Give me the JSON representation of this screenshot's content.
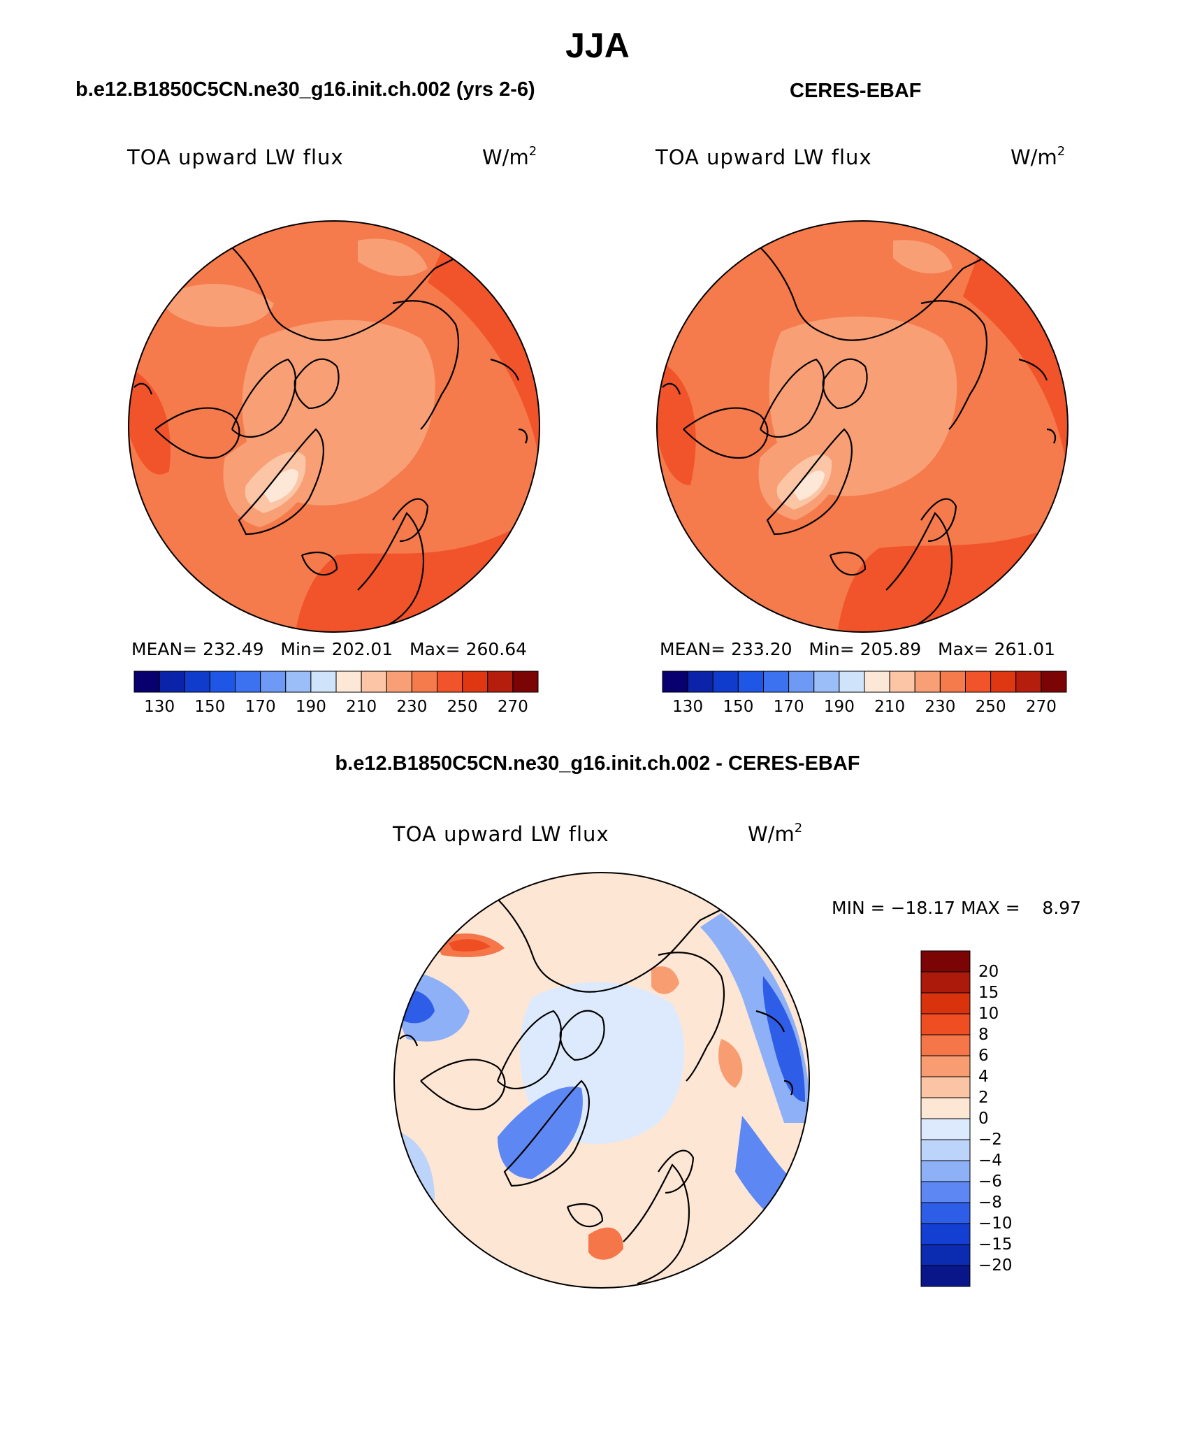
{
  "title": "JJA",
  "colors": {
    "full_palette": [
      "#08006e",
      "#0a23a8",
      "#0f3ccc",
      "#1e56e6",
      "#3c72f0",
      "#6e99f5",
      "#9bbef8",
      "#cfe3fb",
      "#fde8d8",
      "#fbc5a6",
      "#f89f75",
      "#f57a4c",
      "#f1542a",
      "#df3712",
      "#b51e0d",
      "#7b0404"
    ],
    "diff_palette": [
      "#08168a",
      "#0b2bb0",
      "#133fd2",
      "#2e5ee8",
      "#5d87f2",
      "#8eb0f6",
      "#bcd3fa",
      "#ddeafd",
      "#fde6d4",
      "#fbc4a4",
      "#f89d72",
      "#f57648",
      "#ef4e23",
      "#d9330e",
      "#ac1a0b",
      "#7b0505"
    ],
    "coast": "#000000"
  },
  "panels": [
    {
      "case": "b.e12.B1850C5CN.ne30_g16.init.ch.002 (yrs 2-6)",
      "variable": "TOA upward LW flux",
      "unit_base": "W/m",
      "unit_exp": "2",
      "mean_label": "MEAN=",
      "mean": "232.49",
      "min_label": "Min=",
      "min": "202.01",
      "max_label": "Max=",
      "max": "260.64",
      "colorbar_ticks": [
        "130",
        "150",
        "170",
        "190",
        "210",
        "230",
        "250",
        "270"
      ]
    },
    {
      "case": "CERES-EBAF",
      "variable": "TOA upward LW flux",
      "unit_base": "W/m",
      "unit_exp": "2",
      "mean_label": "MEAN=",
      "mean": "233.20",
      "min_label": "Min=",
      "min": "205.89",
      "max_label": "Max=",
      "max": "261.01",
      "colorbar_ticks": [
        "130",
        "150",
        "170",
        "190",
        "210",
        "230",
        "250",
        "270"
      ]
    }
  ],
  "difference": {
    "case": "b.e12.B1850C5CN.ne30_g16.init.ch.002 - CERES-EBAF",
    "variable": "TOA upward LW flux",
    "unit_base": "W/m",
    "unit_exp": "2",
    "minmax": "MIN = −18.17 MAX =    8.97",
    "colorbar_ticks": [
      "20",
      "15",
      "10",
      "8",
      "6",
      "4",
      "2",
      "0",
      "−2",
      "−4",
      "−6",
      "−8",
      "−10",
      "−15",
      "−20"
    ]
  }
}
